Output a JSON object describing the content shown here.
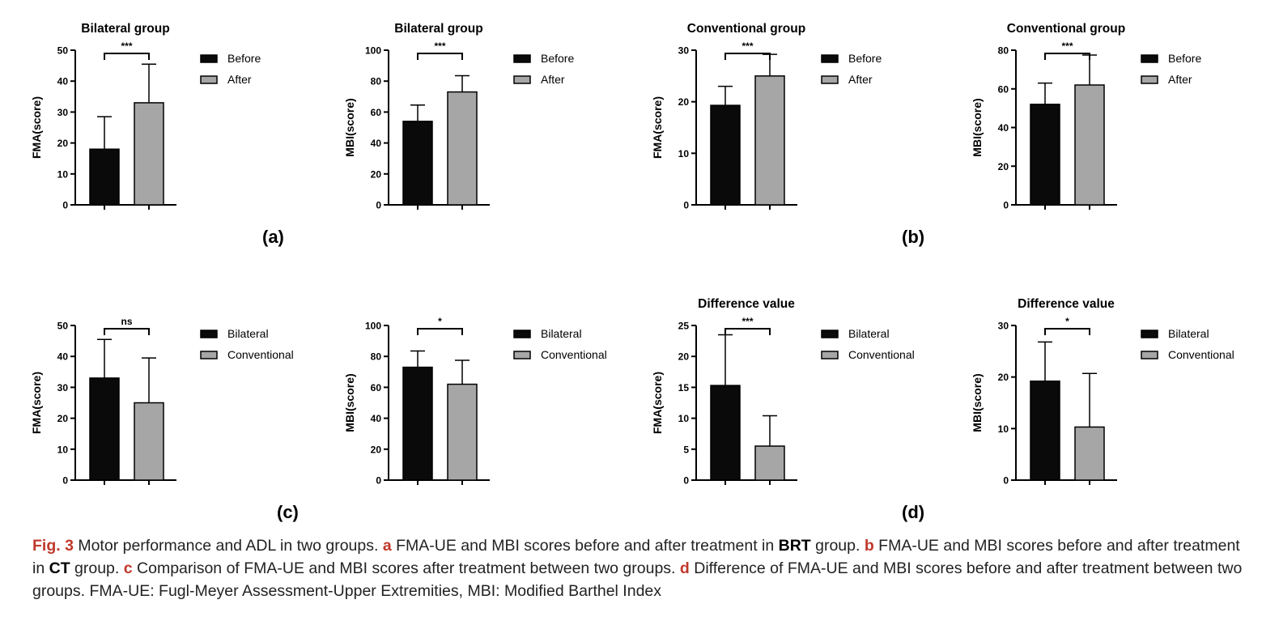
{
  "colors": {
    "bar_first": "#0a0a0a",
    "bar_second": "#a6a6a6",
    "caption_accent": "#c0392b"
  },
  "panel_labels": {
    "a": "(a)",
    "b": "(b)",
    "c": "(c)",
    "d": "(d)"
  },
  "caption": {
    "fig": "Fig. 3",
    "intro": " Motor performance and ADL in two groups. ",
    "a_label": "a",
    "a_text": " FMA-UE and MBI scores before and after treatment in ",
    "a_bold": "BRT",
    "a_end": " group. ",
    "b_label": "b",
    "b_text": " FMA-UE and MBI scores before and after treatment in ",
    "b_bold": "CT",
    "b_end": " group. ",
    "c_label": "c",
    "c_text": " Comparison of FMA-UE and MBI scores after treatment between two groups. ",
    "d_label": "d",
    "d_text": " Difference of FMA-UE and MBI scores before and after treatment between two groups. FMA-UE: Fugl-Meyer Assessment-Upper Extremities, MBI: Modified Barthel Index"
  },
  "chart_data": [
    {
      "type": "bar",
      "title": "Bilateral group",
      "ylabel": "FMA(score)",
      "ylim": [
        0,
        50
      ],
      "yticks": [
        0,
        10,
        20,
        30,
        40,
        50
      ],
      "categories": [
        "Before",
        "After"
      ],
      "values": [
        18,
        33
      ],
      "errors": [
        10.5,
        12.5
      ],
      "significance": "***"
    },
    {
      "type": "bar",
      "title": "Bilateral group",
      "ylabel": "MBI(score)",
      "ylim": [
        0,
        100
      ],
      "yticks": [
        0,
        20,
        40,
        60,
        80,
        100
      ],
      "categories": [
        "Before",
        "After"
      ],
      "values": [
        54,
        73
      ],
      "errors": [
        10.5,
        10.5
      ],
      "significance": "***"
    },
    {
      "type": "bar",
      "title": "Conventional group",
      "ylabel": "FMA(score)",
      "ylim": [
        0,
        30
      ],
      "yticks": [
        0,
        10,
        20,
        30
      ],
      "categories": [
        "Before",
        "After"
      ],
      "values": [
        19.3,
        25
      ],
      "errors": [
        3.7,
        4.2
      ],
      "significance": "***"
    },
    {
      "type": "bar",
      "title": "Conventional group",
      "ylabel": "MBI(score)",
      "ylim": [
        0,
        80
      ],
      "yticks": [
        0,
        20,
        40,
        60,
        80
      ],
      "categories": [
        "Before",
        "After"
      ],
      "values": [
        52,
        62
      ],
      "errors": [
        11,
        15.5
      ],
      "significance": "***"
    },
    {
      "type": "bar",
      "title": "",
      "ylabel": "FMA(score)",
      "ylim": [
        0,
        50
      ],
      "yticks": [
        0,
        10,
        20,
        30,
        40,
        50
      ],
      "categories": [
        "Bilateral",
        "Conventional"
      ],
      "values": [
        33,
        25
      ],
      "errors": [
        12.5,
        14.5
      ],
      "significance": "ns"
    },
    {
      "type": "bar",
      "title": "",
      "ylabel": "MBI(score)",
      "ylim": [
        0,
        100
      ],
      "yticks": [
        0,
        20,
        40,
        60,
        80,
        100
      ],
      "categories": [
        "Bilateral",
        "Conventional"
      ],
      "values": [
        73,
        62
      ],
      "errors": [
        10.5,
        15.5
      ],
      "significance": "*"
    },
    {
      "type": "bar",
      "title": "Difference value",
      "ylabel": "FMA(score)",
      "ylim": [
        0,
        25
      ],
      "yticks": [
        0,
        5,
        10,
        15,
        20,
        25
      ],
      "categories": [
        "Bilateral",
        "Conventional"
      ],
      "values": [
        15.3,
        5.5
      ],
      "errors": [
        8.2,
        4.9
      ],
      "significance": "***"
    },
    {
      "type": "bar",
      "title": "Difference value",
      "ylabel": "MBI(score)",
      "ylim": [
        0,
        30
      ],
      "yticks": [
        0,
        10,
        20,
        30
      ],
      "categories": [
        "Bilateral",
        "Conventional"
      ],
      "values": [
        19.2,
        10.3
      ],
      "errors": [
        7.6,
        10.4
      ],
      "significance": "*"
    }
  ]
}
